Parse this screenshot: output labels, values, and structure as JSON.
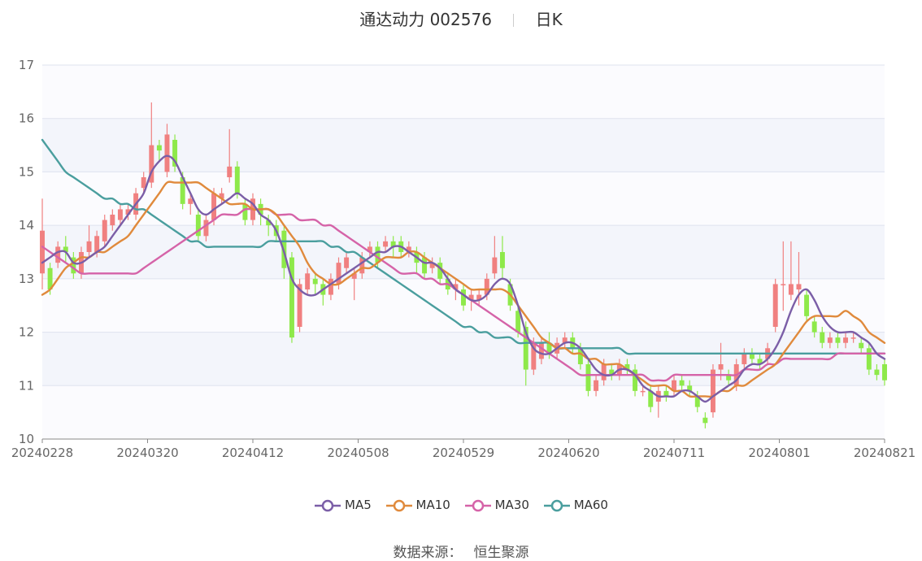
{
  "header": {
    "title": "通达动力 002576",
    "period": "日K"
  },
  "source": {
    "label": "数据来源：",
    "value": "恒生聚源"
  },
  "chart_data": {
    "type": "candlestick",
    "ylim": [
      10,
      17
    ],
    "yticks": [
      10,
      11,
      12,
      13,
      14,
      15,
      16,
      17
    ],
    "xticks": [
      "20240228",
      "20240320",
      "20240412",
      "20240508",
      "20240529",
      "20240620",
      "20240711",
      "20240801",
      "20240821"
    ],
    "colors": {
      "up": "#f08080",
      "down": "#8ee94a",
      "MA5": "#7b5ea7",
      "MA10": "#e08a3c",
      "MA30": "#d563a8",
      "MA60": "#4a9e9e"
    },
    "candles": [
      [
        13.1,
        13.9,
        12.8,
        14.5
      ],
      [
        13.2,
        12.8,
        12.7,
        13.3
      ],
      [
        13.3,
        13.6,
        13.2,
        13.7
      ],
      [
        13.6,
        13.5,
        13.3,
        13.8
      ],
      [
        13.4,
        13.1,
        13.0,
        13.5
      ],
      [
        13.1,
        13.5,
        13.0,
        13.6
      ],
      [
        13.5,
        13.7,
        13.4,
        14.0
      ],
      [
        13.5,
        13.8,
        13.4,
        13.9
      ],
      [
        13.7,
        14.1,
        13.6,
        14.2
      ],
      [
        14.0,
        14.2,
        13.9,
        14.3
      ],
      [
        14.1,
        14.3,
        14.0,
        14.4
      ],
      [
        14.2,
        14.3,
        14.1,
        14.4
      ],
      [
        14.2,
        14.6,
        14.1,
        14.7
      ],
      [
        14.7,
        14.9,
        14.6,
        15.0
      ],
      [
        14.8,
        15.5,
        14.7,
        16.3
      ],
      [
        15.5,
        15.4,
        15.2,
        15.6
      ],
      [
        15.0,
        15.7,
        14.9,
        15.9
      ],
      [
        15.6,
        15.1,
        15.0,
        15.7
      ],
      [
        14.9,
        14.4,
        14.3,
        15.0
      ],
      [
        14.4,
        14.5,
        14.2,
        14.6
      ],
      [
        14.2,
        13.8,
        13.7,
        14.3
      ],
      [
        13.8,
        14.1,
        13.7,
        14.2
      ],
      [
        14.1,
        14.6,
        14.0,
        14.7
      ],
      [
        14.5,
        14.6,
        14.4,
        14.7
      ],
      [
        14.9,
        15.1,
        14.8,
        15.8
      ],
      [
        15.1,
        14.6,
        14.5,
        15.2
      ],
      [
        14.4,
        14.1,
        14.0,
        14.5
      ],
      [
        14.1,
        14.5,
        14.0,
        14.6
      ],
      [
        14.4,
        14.2,
        14.0,
        14.5
      ],
      [
        14.1,
        14.0,
        13.8,
        14.2
      ],
      [
        14.0,
        13.8,
        13.7,
        14.1
      ],
      [
        13.9,
        13.2,
        13.0,
        14.0
      ],
      [
        13.4,
        11.9,
        11.8,
        13.5
      ],
      [
        12.1,
        12.9,
        12.0,
        13.0
      ],
      [
        12.8,
        13.1,
        12.7,
        13.2
      ],
      [
        13.0,
        12.9,
        12.7,
        13.1
      ],
      [
        12.9,
        12.7,
        12.5,
        13.0
      ],
      [
        12.7,
        13.0,
        12.6,
        13.1
      ],
      [
        12.9,
        13.3,
        12.8,
        13.4
      ],
      [
        13.2,
        13.4,
        13.1,
        13.5
      ],
      [
        13.0,
        13.1,
        12.6,
        13.2
      ],
      [
        13.1,
        13.4,
        13.0,
        13.5
      ],
      [
        13.5,
        13.6,
        13.4,
        13.7
      ],
      [
        13.6,
        13.3,
        13.2,
        13.7
      ],
      [
        13.6,
        13.7,
        13.5,
        13.8
      ],
      [
        13.7,
        13.6,
        13.4,
        13.8
      ],
      [
        13.7,
        13.5,
        13.4,
        13.8
      ],
      [
        13.5,
        13.6,
        13.4,
        13.7
      ],
      [
        13.5,
        13.3,
        13.1,
        13.6
      ],
      [
        13.4,
        13.1,
        13.0,
        13.5
      ],
      [
        13.2,
        13.3,
        13.1,
        13.4
      ],
      [
        13.3,
        13.0,
        12.9,
        13.4
      ],
      [
        13.0,
        12.8,
        12.7,
        13.1
      ],
      [
        12.8,
        12.9,
        12.6,
        13.0
      ],
      [
        12.8,
        12.5,
        12.4,
        12.9
      ],
      [
        12.6,
        12.7,
        12.4,
        12.8
      ],
      [
        12.6,
        12.7,
        12.5,
        12.8
      ],
      [
        12.7,
        13.0,
        12.6,
        13.1
      ],
      [
        13.1,
        13.4,
        13.0,
        13.8
      ],
      [
        13.5,
        13.2,
        13.0,
        13.8
      ],
      [
        12.9,
        12.5,
        12.4,
        13.0
      ],
      [
        12.4,
        12.0,
        11.9,
        12.5
      ],
      [
        12.1,
        11.3,
        11.0,
        12.2
      ],
      [
        11.3,
        11.8,
        11.2,
        11.9
      ],
      [
        11.5,
        11.8,
        11.4,
        11.9
      ],
      [
        11.8,
        11.6,
        11.5,
        12.0
      ],
      [
        11.6,
        11.8,
        11.5,
        11.9
      ],
      [
        11.8,
        11.9,
        11.7,
        12.0
      ],
      [
        11.9,
        11.7,
        11.6,
        12.0
      ],
      [
        11.7,
        11.4,
        11.3,
        11.8
      ],
      [
        11.4,
        10.9,
        10.8,
        11.5
      ],
      [
        10.9,
        11.1,
        10.8,
        11.2
      ],
      [
        11.1,
        11.4,
        11.0,
        11.5
      ],
      [
        11.3,
        11.2,
        11.1,
        11.4
      ],
      [
        11.2,
        11.4,
        11.1,
        11.5
      ],
      [
        11.4,
        11.3,
        11.2,
        11.5
      ],
      [
        11.3,
        10.9,
        10.8,
        11.4
      ],
      [
        10.9,
        10.9,
        10.8,
        11.0
      ],
      [
        10.9,
        10.6,
        10.5,
        11.0
      ],
      [
        10.7,
        10.9,
        10.4,
        11.0
      ],
      [
        10.9,
        10.8,
        10.7,
        11.0
      ],
      [
        10.9,
        11.1,
        10.8,
        11.2
      ],
      [
        11.1,
        11.0,
        10.9,
        11.2
      ],
      [
        11.0,
        10.9,
        10.8,
        11.1
      ],
      [
        10.8,
        10.6,
        10.5,
        10.9
      ],
      [
        10.4,
        10.3,
        10.2,
        10.5
      ],
      [
        10.5,
        11.3,
        10.4,
        11.4
      ],
      [
        11.3,
        11.4,
        11.1,
        11.8
      ],
      [
        11.2,
        11.1,
        11.0,
        11.3
      ],
      [
        11.0,
        11.4,
        10.9,
        11.5
      ],
      [
        11.4,
        11.6,
        11.3,
        11.7
      ],
      [
        11.6,
        11.5,
        11.4,
        11.7
      ],
      [
        11.5,
        11.4,
        11.3,
        11.6
      ],
      [
        11.5,
        11.7,
        11.4,
        11.8
      ],
      [
        12.1,
        12.9,
        12.0,
        13.0
      ],
      [
        12.9,
        12.9,
        12.4,
        13.7
      ],
      [
        12.7,
        12.9,
        12.6,
        13.7
      ],
      [
        12.8,
        12.9,
        12.5,
        13.5
      ],
      [
        12.7,
        12.3,
        12.2,
        12.8
      ],
      [
        12.2,
        12.0,
        11.9,
        12.3
      ],
      [
        12.0,
        11.8,
        11.7,
        12.1
      ],
      [
        11.8,
        11.9,
        11.7,
        12.0
      ],
      [
        11.9,
        11.8,
        11.7,
        12.0
      ],
      [
        11.8,
        11.9,
        11.7,
        12.0
      ],
      [
        11.9,
        11.9,
        11.8,
        12.0
      ],
      [
        11.8,
        11.7,
        11.6,
        11.9
      ],
      [
        11.7,
        11.3,
        11.2,
        11.8
      ],
      [
        11.3,
        11.2,
        11.1,
        11.4
      ],
      [
        11.4,
        11.1,
        11.0,
        11.5
      ]
    ],
    "ma": {
      "MA5": [
        13.3,
        13.4,
        13.5,
        13.5,
        13.3,
        13.3,
        13.4,
        13.5,
        13.6,
        13.8,
        14.0,
        14.2,
        14.4,
        14.6,
        15.0,
        15.2,
        15.3,
        15.2,
        14.9,
        14.6,
        14.3,
        14.2,
        14.3,
        14.4,
        14.5,
        14.6,
        14.5,
        14.4,
        14.2,
        14.1,
        13.9,
        13.5,
        13.0,
        12.8,
        12.7,
        12.7,
        12.8,
        12.9,
        13.0,
        13.1,
        13.2,
        13.3,
        13.4,
        13.5,
        13.5,
        13.6,
        13.6,
        13.5,
        13.4,
        13.3,
        13.3,
        13.2,
        13.0,
        12.8,
        12.7,
        12.6,
        12.6,
        12.7,
        12.9,
        13.0,
        12.9,
        12.5,
        12.0,
        11.7,
        11.6,
        11.6,
        11.7,
        11.8,
        11.8,
        11.7,
        11.5,
        11.3,
        11.2,
        11.2,
        11.3,
        11.3,
        11.2,
        11.0,
        10.9,
        10.8,
        10.8,
        10.8,
        10.9,
        10.9,
        10.8,
        10.7,
        10.8,
        10.9,
        11.0,
        11.1,
        11.3,
        11.4,
        11.4,
        11.5,
        11.7,
        12.0,
        12.4,
        12.7,
        12.8,
        12.6,
        12.3,
        12.1,
        12.0,
        12.0,
        12.0,
        11.9,
        11.8,
        11.6,
        11.5
      ],
      "MA10": [
        12.7,
        12.8,
        13.0,
        13.2,
        13.3,
        13.4,
        13.4,
        13.5,
        13.5,
        13.6,
        13.7,
        13.8,
        14.0,
        14.2,
        14.4,
        14.6,
        14.8,
        14.8,
        14.8,
        14.8,
        14.8,
        14.7,
        14.6,
        14.5,
        14.4,
        14.4,
        14.4,
        14.3,
        14.3,
        14.3,
        14.2,
        14.0,
        13.8,
        13.6,
        13.3,
        13.1,
        13.0,
        12.9,
        12.9,
        13.0,
        13.1,
        13.2,
        13.2,
        13.3,
        13.4,
        13.4,
        13.4,
        13.5,
        13.5,
        13.4,
        13.3,
        13.2,
        13.1,
        13.0,
        12.9,
        12.8,
        12.8,
        12.8,
        12.8,
        12.8,
        12.7,
        12.5,
        12.3,
        12.1,
        11.9,
        11.8,
        11.7,
        11.7,
        11.6,
        11.6,
        11.5,
        11.5,
        11.4,
        11.4,
        11.4,
        11.3,
        11.2,
        11.1,
        11.0,
        11.0,
        11.0,
        10.9,
        10.9,
        10.8,
        10.8,
        10.8,
        10.8,
        10.9,
        10.9,
        11.0,
        11.0,
        11.1,
        11.2,
        11.3,
        11.4,
        11.6,
        11.8,
        12.0,
        12.2,
        12.3,
        12.3,
        12.3,
        12.3,
        12.4,
        12.3,
        12.2,
        12.0,
        11.9,
        11.8
      ],
      "MA30": [
        13.6,
        13.5,
        13.4,
        13.3,
        13.2,
        13.1,
        13.1,
        13.1,
        13.1,
        13.1,
        13.1,
        13.1,
        13.1,
        13.2,
        13.3,
        13.4,
        13.5,
        13.6,
        13.7,
        13.8,
        13.9,
        14.0,
        14.1,
        14.2,
        14.2,
        14.2,
        14.3,
        14.3,
        14.3,
        14.3,
        14.2,
        14.2,
        14.2,
        14.1,
        14.1,
        14.1,
        14.0,
        14.0,
        13.9,
        13.8,
        13.7,
        13.6,
        13.5,
        13.4,
        13.3,
        13.2,
        13.1,
        13.1,
        13.1,
        13.0,
        13.0,
        12.9,
        12.9,
        12.8,
        12.7,
        12.6,
        12.5,
        12.4,
        12.3,
        12.2,
        12.1,
        12.0,
        11.9,
        11.8,
        11.7,
        11.6,
        11.5,
        11.4,
        11.3,
        11.2,
        11.2,
        11.2,
        11.2,
        11.2,
        11.2,
        11.2,
        11.2,
        11.2,
        11.1,
        11.1,
        11.1,
        11.2,
        11.2,
        11.2,
        11.2,
        11.2,
        11.2,
        11.2,
        11.2,
        11.2,
        11.3,
        11.3,
        11.3,
        11.4,
        11.4,
        11.5,
        11.5,
        11.5,
        11.5,
        11.5,
        11.5,
        11.5,
        11.6,
        11.6,
        11.6,
        11.6,
        11.6,
        11.6,
        11.6
      ],
      "MA60": [
        15.6,
        15.4,
        15.2,
        15.0,
        14.9,
        14.8,
        14.7,
        14.6,
        14.5,
        14.5,
        14.4,
        14.4,
        14.3,
        14.3,
        14.2,
        14.1,
        14.0,
        13.9,
        13.8,
        13.7,
        13.7,
        13.6,
        13.6,
        13.6,
        13.6,
        13.6,
        13.6,
        13.6,
        13.6,
        13.7,
        13.7,
        13.7,
        13.7,
        13.7,
        13.7,
        13.7,
        13.7,
        13.6,
        13.6,
        13.5,
        13.5,
        13.4,
        13.3,
        13.2,
        13.1,
        13.0,
        12.9,
        12.8,
        12.7,
        12.6,
        12.5,
        12.4,
        12.3,
        12.2,
        12.1,
        12.1,
        12.0,
        12.0,
        11.9,
        11.9,
        11.9,
        11.8,
        11.8,
        11.8,
        11.8,
        11.8,
        11.7,
        11.7,
        11.7,
        11.7,
        11.7,
        11.7,
        11.7,
        11.7,
        11.7,
        11.6,
        11.6,
        11.6,
        11.6,
        11.6,
        11.6,
        11.6,
        11.6,
        11.6,
        11.6,
        11.6,
        11.6,
        11.6,
        11.6,
        11.6,
        11.6,
        11.6,
        11.6,
        11.6,
        11.6,
        11.6,
        11.6,
        11.6,
        11.6,
        11.6,
        11.6,
        11.6,
        11.6,
        11.6,
        11.6,
        11.6,
        11.6,
        11.6,
        11.6
      ]
    }
  },
  "legend": [
    {
      "label": "MA5",
      "color": "#7b5ea7"
    },
    {
      "label": "MA10",
      "color": "#e08a3c"
    },
    {
      "label": "MA30",
      "color": "#d563a8"
    },
    {
      "label": "MA60",
      "color": "#4a9e9e"
    }
  ]
}
